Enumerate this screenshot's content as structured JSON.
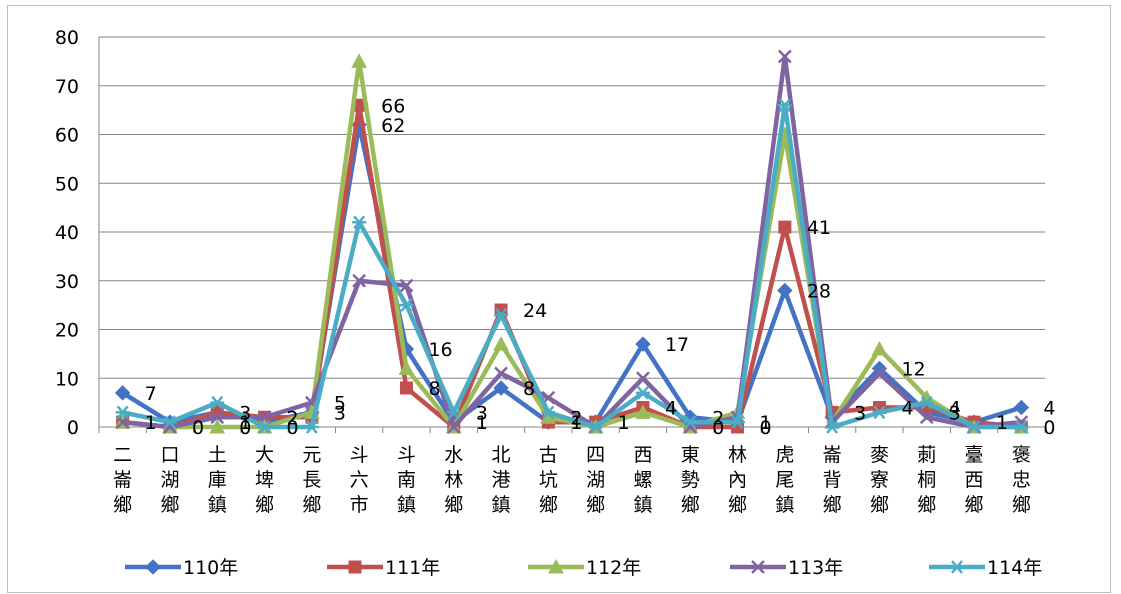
{
  "chart_data": {
    "type": "line",
    "title": "",
    "xlabel": "",
    "ylabel": "",
    "ylim": [
      0,
      80
    ],
    "yticks": [
      0,
      10,
      20,
      30,
      40,
      50,
      60,
      70,
      80
    ],
    "grid": true,
    "legend_position": "bottom",
    "categories": [
      "二崙鄉",
      "口湖鄉",
      "土庫鎮",
      "大埤鄉",
      "元長鄉",
      "斗六市",
      "斗南鎮",
      "水林鄉",
      "北港鎮",
      "古坑鄉",
      "四湖鄉",
      "西螺鎮",
      "東勢鄉",
      "林內鄉",
      "虎尾鎮",
      "崙背鄉",
      "麥寮鄉",
      "莿桐鄉",
      "臺西鄉",
      "褒忠鄉"
    ],
    "series": [
      {
        "name": "110年",
        "color": "#4472C4",
        "marker": "diamond",
        "values": [
          7,
          1,
          3,
          1,
          3,
          62,
          16,
          1,
          8,
          1,
          1,
          17,
          2,
          1,
          28,
          2,
          12,
          3,
          1,
          4
        ]
      },
      {
        "name": "111年",
        "color": "#C0504D",
        "marker": "square",
        "values": [
          1,
          0,
          3,
          2,
          2,
          66,
          8,
          0,
          24,
          1,
          1,
          4,
          0,
          0,
          41,
          3,
          4,
          4,
          1,
          0
        ]
      },
      {
        "name": "112年",
        "color": "#9BBB59",
        "marker": "triangle",
        "values": [
          1,
          0,
          0,
          0,
          3,
          75,
          12,
          0,
          17,
          2,
          0,
          3,
          0,
          3,
          60,
          1,
          16,
          6,
          0,
          0
        ]
      },
      {
        "name": "113年",
        "color": "#8064A2",
        "marker": "x",
        "values": [
          1,
          0,
          2,
          2,
          5,
          30,
          29,
          0,
          11,
          6,
          0,
          10,
          0,
          2,
          76,
          1,
          11,
          2,
          0,
          1
        ]
      },
      {
        "name": "114年",
        "color": "#4BACC6",
        "marker": "star",
        "values": [
          3,
          1,
          5,
          0,
          0,
          42,
          25,
          3,
          23,
          3,
          0,
          7,
          1,
          1,
          66,
          0,
          3,
          5,
          0,
          0
        ]
      }
    ],
    "annotations": [
      {
        "text": "7",
        "x": 0,
        "y": 7
      },
      {
        "text": "1",
        "x": 0,
        "y": 1
      },
      {
        "text": "0",
        "x": 1,
        "y": 0
      },
      {
        "text": "1",
        "x": 2,
        "y": 1
      },
      {
        "text": "3",
        "x": 2,
        "y": 3
      },
      {
        "text": "0",
        "x": 2,
        "y": 0
      },
      {
        "text": "2",
        "x": 3,
        "y": 2
      },
      {
        "text": "0",
        "x": 3,
        "y": 0
      },
      {
        "text": "5",
        "x": 4,
        "y": 5
      },
      {
        "text": "3",
        "x": 4,
        "y": 3
      },
      {
        "text": "66",
        "x": 5,
        "y": 66
      },
      {
        "text": "62",
        "x": 5,
        "y": 62
      },
      {
        "text": "16",
        "x": 6,
        "y": 16
      },
      {
        "text": "8",
        "x": 6,
        "y": 8
      },
      {
        "text": "3",
        "x": 7,
        "y": 3
      },
      {
        "text": "1",
        "x": 7,
        "y": 1
      },
      {
        "text": "24",
        "x": 8,
        "y": 24
      },
      {
        "text": "8",
        "x": 8,
        "y": 8
      },
      {
        "text": "2",
        "x": 9,
        "y": 2
      },
      {
        "text": "1",
        "x": 9,
        "y": 1
      },
      {
        "text": "1",
        "x": 10,
        "y": 1
      },
      {
        "text": "17",
        "x": 11,
        "y": 17
      },
      {
        "text": "4",
        "x": 11,
        "y": 4
      },
      {
        "text": "2",
        "x": 12,
        "y": 2
      },
      {
        "text": "0",
        "x": 12,
        "y": 0
      },
      {
        "text": "1",
        "x": 13,
        "y": 1
      },
      {
        "text": "0",
        "x": 13,
        "y": 0
      },
      {
        "text": "41",
        "x": 14,
        "y": 41
      },
      {
        "text": "28",
        "x": 14,
        "y": 28
      },
      {
        "text": "3",
        "x": 15,
        "y": 3
      },
      {
        "text": "12",
        "x": 16,
        "y": 12
      },
      {
        "text": "4",
        "x": 16,
        "y": 4
      },
      {
        "text": "4",
        "x": 17,
        "y": 4
      },
      {
        "text": "3",
        "x": 17,
        "y": 3
      },
      {
        "text": "1",
        "x": 18,
        "y": 1
      },
      {
        "text": "4",
        "x": 19,
        "y": 4
      },
      {
        "text": "0",
        "x": 19,
        "y": 0
      }
    ]
  }
}
